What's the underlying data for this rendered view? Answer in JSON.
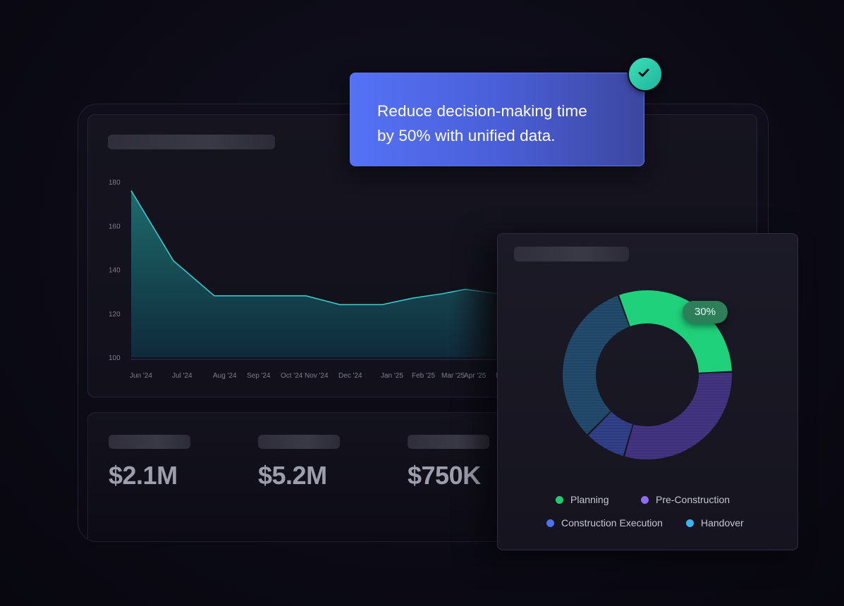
{
  "callout": {
    "line1": "Reduce decision-making time",
    "line2": "by 50% with unified data."
  },
  "chart_data": [
    {
      "type": "area",
      "title": "",
      "xlabel": "",
      "ylabel": "",
      "ylim": [
        100,
        180
      ],
      "yticks": [
        "100",
        "120",
        "140",
        "160",
        "180"
      ],
      "x": [
        "Jun '24",
        "Jul '24",
        "Aug '24",
        "Sep '24",
        "Oct '24",
        "Nov '24",
        "Dec '24",
        "Jan '25",
        "Feb '25",
        "Mar '25",
        "Apr '25",
        "May"
      ],
      "values": [
        176,
        144,
        128,
        128,
        128,
        128,
        124,
        124,
        127,
        129,
        131,
        129
      ],
      "colors": {
        "line": "#35c9c9",
        "fill_top": "#1d6b6c",
        "fill_bottom": "#0f2a3a"
      }
    },
    {
      "type": "pie",
      "title": "",
      "series": [
        {
          "name": "Planning",
          "value": 30,
          "color": "#1fd17a"
        },
        {
          "name": "Pre-Construction",
          "value": 30,
          "color": "#3d2f7a"
        },
        {
          "name": "Construction Execution",
          "value": 8,
          "color": "#2a3a80"
        },
        {
          "name": "Handover",
          "value": 32,
          "color": "#1d4465"
        }
      ],
      "highlight_label": "30%",
      "legend_position": "bottom"
    }
  ],
  "stats": [
    {
      "value": "$2.1M"
    },
    {
      "value": "$5.2M"
    },
    {
      "value": "$750K"
    }
  ],
  "legend": [
    {
      "label": "Planning",
      "color": "#22c96f"
    },
    {
      "label": "Pre-Construction",
      "color": "#8c6cf0"
    },
    {
      "label": "Construction Execution",
      "color": "#5070ee"
    },
    {
      "label": "Handover",
      "color": "#3cb5ee"
    }
  ],
  "icons": {
    "check": "check-icon"
  }
}
